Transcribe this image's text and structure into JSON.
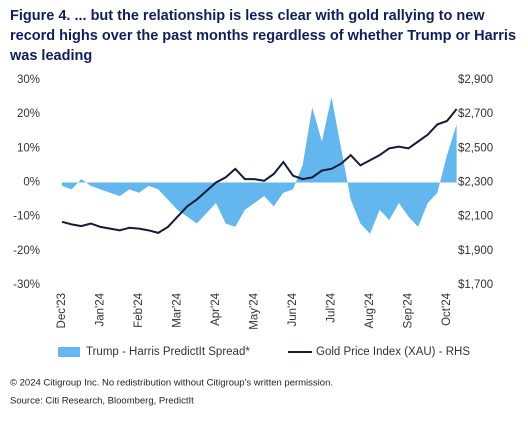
{
  "chart_data": {
    "type": "line",
    "title": "Figure 4. ... but the relationship is less clear with gold rallying to new record highs over the past months regardless of whether Trump or Harris was leading",
    "categories": [
      "Dec'23",
      null,
      null,
      null,
      "Jan'24",
      null,
      null,
      null,
      "Feb'24",
      null,
      null,
      null,
      "Mar'24",
      null,
      null,
      null,
      "Apr'24",
      null,
      null,
      null,
      "May'24",
      null,
      null,
      null,
      "Jun'24",
      null,
      null,
      null,
      "Jul'24",
      null,
      null,
      null,
      "Aug'24",
      null,
      null,
      null,
      "Sep'24",
      null,
      null,
      null,
      "Oct'24",
      null
    ],
    "series": [
      {
        "name": "Trump - Harris PredictIt Spread*",
        "type": "area",
        "color": "#63b6ee",
        "axis": "y",
        "values": [
          -1,
          -2,
          1,
          -1,
          -2,
          -3,
          -4,
          -2,
          -3,
          -1,
          -2,
          -5,
          -8,
          -10,
          -12,
          -9,
          -6,
          -12,
          -13,
          -8,
          -6,
          -4,
          -7,
          -3,
          -2,
          5,
          22,
          12,
          25,
          10,
          -5,
          -12,
          -15,
          -8,
          -11,
          -6,
          -10,
          -13,
          -6,
          -3,
          8,
          17
        ]
      },
      {
        "name": "Gold Price Index (XAU) - RHS",
        "type": "line",
        "color": "#141a3a",
        "axis": "y2",
        "values": [
          2070,
          2055,
          2045,
          2060,
          2040,
          2030,
          2020,
          2035,
          2030,
          2020,
          2005,
          2040,
          2100,
          2160,
          2200,
          2250,
          2300,
          2330,
          2380,
          2320,
          2320,
          2310,
          2350,
          2420,
          2340,
          2320,
          2330,
          2370,
          2380,
          2410,
          2460,
          2400,
          2430,
          2460,
          2500,
          2510,
          2500,
          2540,
          2580,
          2640,
          2660,
          2730
        ]
      }
    ],
    "ylim": [
      -30,
      30
    ],
    "yticks": [
      {
        "value": -30,
        "label": "-30%"
      },
      {
        "value": -20,
        "label": "-20%"
      },
      {
        "value": -10,
        "label": "-10%"
      },
      {
        "value": 0,
        "label": "0%"
      },
      {
        "value": 10,
        "label": "10%"
      },
      {
        "value": 20,
        "label": "20%"
      },
      {
        "value": 30,
        "label": "30%"
      }
    ],
    "y2lim": [
      1700,
      2900
    ],
    "y2ticks": [
      {
        "value": 1700,
        "label": "$1,700"
      },
      {
        "value": 1900,
        "label": "$1,900"
      },
      {
        "value": 2100,
        "label": "$2,100"
      },
      {
        "value": 2300,
        "label": "$2,300"
      },
      {
        "value": 2500,
        "label": "$2,500"
      },
      {
        "value": 2700,
        "label": "$2,700"
      },
      {
        "value": 2900,
        "label": "$2,900"
      }
    ],
    "copyright": "© 2024 Citigroup Inc. No redistribution without Citigroup's written permission.",
    "source": "Source: Citi Research, Bloomberg, PredictIt"
  }
}
